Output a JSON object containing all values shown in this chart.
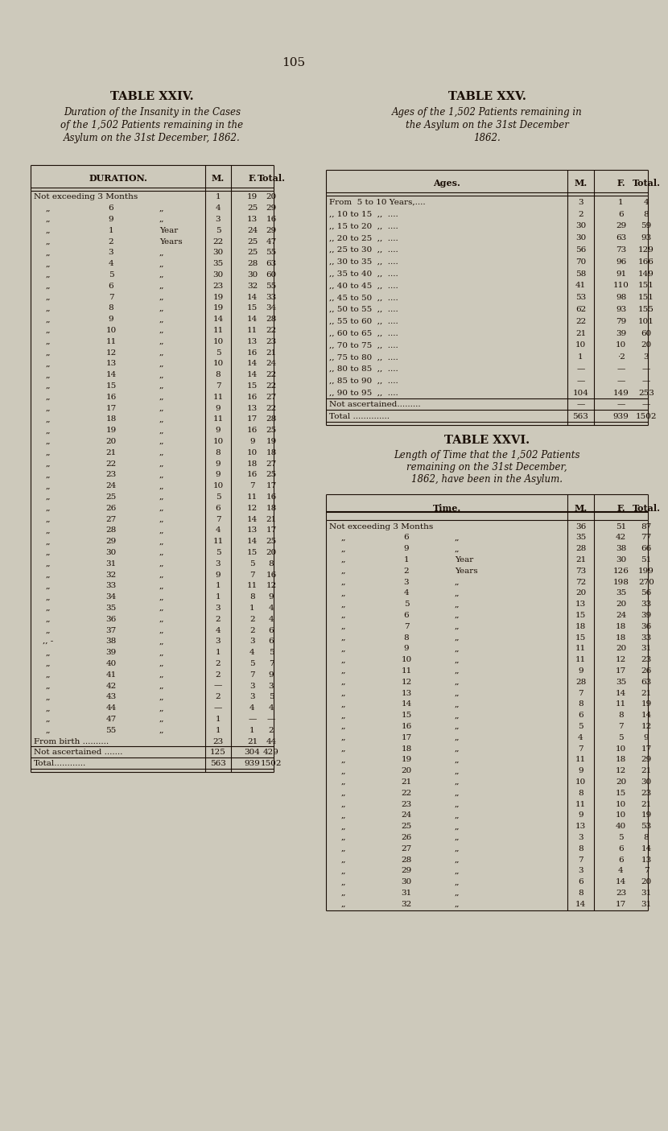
{
  "page_number": "105",
  "bg_color": "#cdc9bb",
  "text_color": "#1a0e05",
  "table24": {
    "title": "TABLE XXIV.",
    "subtitle": [
      "Duration of the Insanity in the Cases",
      "of the 1,502 Patients remaining in the",
      "Asylum on the 31st December, 1862."
    ],
    "rows": [
      [
        "Not exceeding 3 Months",
        "",
        "",
        "1",
        "19",
        "20"
      ],
      [
        ",,",
        "6",
        ",,",
        "4",
        "25",
        "29"
      ],
      [
        ",,",
        "9",
        ",,",
        "3",
        "13",
        "16"
      ],
      [
        ",,",
        "1",
        "Year",
        "5",
        "24",
        "29"
      ],
      [
        ",,",
        "2",
        "Years",
        "22",
        "25",
        "47"
      ],
      [
        ",,",
        "3",
        ",,",
        "30",
        "25",
        "55"
      ],
      [
        ",,",
        "4",
        ",,",
        "35",
        "28",
        "63"
      ],
      [
        ",,",
        "5",
        ",,",
        "30",
        "30",
        "60"
      ],
      [
        ",,",
        "6",
        ",,",
        "23",
        "32",
        "55"
      ],
      [
        ",,",
        "7",
        ",,",
        "19",
        "14",
        "33"
      ],
      [
        ",,",
        "8",
        ",,",
        "19",
        "15",
        "34"
      ],
      [
        ",,",
        "9",
        ",,",
        "14",
        "14",
        "28"
      ],
      [
        ",,",
        "10",
        ",,",
        "11",
        "11",
        "22"
      ],
      [
        ",,",
        "11",
        ",,",
        "10",
        "13",
        "23"
      ],
      [
        ",,",
        "12",
        ",,",
        "5",
        "16",
        "21"
      ],
      [
        ",,",
        "13",
        ",,",
        "10",
        "14",
        "24"
      ],
      [
        ",,",
        "14",
        ",,",
        "8",
        "14",
        "22"
      ],
      [
        ",,",
        "15",
        ",,",
        "7",
        "15",
        "22"
      ],
      [
        ",,",
        "16",
        ",,",
        "11",
        "16",
        "27"
      ],
      [
        ",,",
        "17",
        ",,",
        "9",
        "13",
        "22"
      ],
      [
        ",,",
        "18",
        ",,",
        "11",
        "17",
        "28"
      ],
      [
        ",,",
        "19",
        ",,",
        "9",
        "16",
        "25"
      ],
      [
        ",,",
        "20",
        ",,",
        "10",
        "9",
        "19"
      ],
      [
        ",,",
        "21",
        ",,",
        "8",
        "10",
        "18"
      ],
      [
        ",,",
        "22",
        ",,",
        "9",
        "18",
        "27"
      ],
      [
        ",,",
        "23",
        ",,",
        "9",
        "16",
        "25"
      ],
      [
        ",,",
        "24",
        ",,",
        "10",
        "7",
        "17"
      ],
      [
        ",,",
        "25",
        ",,",
        "5",
        "11",
        "16"
      ],
      [
        ",,",
        "26",
        ",,",
        "6",
        "12",
        "18"
      ],
      [
        ",,",
        "27",
        ",,",
        "7",
        "14",
        "21"
      ],
      [
        ",,",
        "28",
        ",,",
        "4",
        "13",
        "17"
      ],
      [
        ",,",
        "29",
        ",,",
        "11",
        "14",
        "25"
      ],
      [
        ",,",
        "30",
        ",,",
        "5",
        "15",
        "20"
      ],
      [
        ",,",
        "31",
        ",,",
        "3",
        "5",
        "8"
      ],
      [
        ",,",
        "32",
        ",,",
        "9",
        "7",
        "16"
      ],
      [
        ",,",
        "33",
        ",,",
        "1",
        "11",
        "12"
      ],
      [
        ",,",
        "34",
        ",,",
        "1",
        "8",
        "9"
      ],
      [
        ",,",
        "35",
        ",,",
        "3",
        "1",
        "4"
      ],
      [
        ",,",
        "36",
        ",,",
        "2",
        "2",
        "4"
      ],
      [
        ",,",
        "37",
        ",,",
        "4",
        "2",
        "6"
      ],
      [
        ",, -",
        "38",
        ",,",
        "3",
        "3",
        "6"
      ],
      [
        ",,",
        "39",
        ",,",
        "1",
        "4",
        "5"
      ],
      [
        ",,",
        "40",
        ",,",
        "2",
        "5",
        "7"
      ],
      [
        ",,",
        "41",
        ",,",
        "2",
        "7",
        "9"
      ],
      [
        ",,",
        "42",
        ",,",
        "—",
        "3",
        "3"
      ],
      [
        ",,",
        "43",
        ",,",
        "2",
        "3",
        "5"
      ],
      [
        ",,",
        "44",
        ",,",
        "—",
        "4",
        "4"
      ],
      [
        ",,",
        "47",
        ",,",
        "1",
        "—",
        "—"
      ],
      [
        ",,",
        "55",
        ",,",
        "1",
        "1",
        "2"
      ],
      [
        "From birth ..........",
        "",
        "",
        "23",
        "21",
        "44"
      ],
      [
        "Not ascertained .......",
        "",
        "",
        "125",
        "304",
        "429"
      ],
      [
        "Total............",
        "",
        "",
        "563",
        "939",
        "1502"
      ]
    ]
  },
  "table25": {
    "title": "TABLE XXV.",
    "subtitle": [
      "Ages of the 1,502 Patients remaining in",
      "the Asylum on the 31st December",
      "1862."
    ],
    "rows": [
      [
        "From  5 to 10 Years,....",
        "3",
        "1",
        "4"
      ],
      [
        ",, 10 to 15  ,,  ....",
        "2",
        "6",
        "8"
      ],
      [
        ",, 15 to 20  ,,  ....",
        "30",
        "29",
        "59"
      ],
      [
        ",, 20 to 25  ,,  ....",
        "30",
        "63",
        "93"
      ],
      [
        ",, 25 to 30  ,,  ....",
        "56",
        "73",
        "129"
      ],
      [
        ",, 30 to 35  ,,  ....",
        "70",
        "96",
        "166"
      ],
      [
        ",, 35 to 40  ,,  ....",
        "58",
        "91",
        "149"
      ],
      [
        ",, 40 to 45  ,,  ....",
        "41",
        "110",
        "151"
      ],
      [
        ",, 45 to 50  ,,  ....",
        "53",
        "98",
        "151"
      ],
      [
        ",, 50 to 55  ,,  ....",
        "62",
        "93",
        "155"
      ],
      [
        ",, 55 to 60  ,,  ....",
        "22",
        "79",
        "101"
      ],
      [
        ",, 60 to 65  ,,  ....",
        "21",
        "39",
        "60"
      ],
      [
        ",, 70 to 75  ,,  ....",
        "10",
        "10",
        "20"
      ],
      [
        ",, 75 to 80  ,,  ....",
        "1",
        "·2",
        "3"
      ],
      [
        ",, 80 to 85  ,,  ....",
        "—",
        "—",
        "—"
      ],
      [
        ",, 85 to 90  ,,  ....",
        "—",
        "—",
        "—"
      ],
      [
        ",, 90 to 95  ,,  ....",
        "104",
        "149",
        "253"
      ],
      [
        "Not ascertained.........",
        "—",
        "—",
        "—"
      ],
      [
        "Total ..............",
        "563",
        "939",
        "1502"
      ]
    ]
  },
  "table26": {
    "title": "TABLE XXVI.",
    "subtitle": [
      "Length of Time that the 1,502 Patients",
      "remaining on the 31st December,",
      "1862, have been in the Asylum."
    ],
    "rows": [
      [
        "Not exceeding 3 Months",
        "",
        "",
        "36",
        "51",
        "87"
      ],
      [
        ",,",
        "6",
        ",,",
        "35",
        "42",
        "77"
      ],
      [
        ",,",
        "9",
        ",,",
        "28",
        "38",
        "66"
      ],
      [
        ",,",
        "1",
        "Year",
        "21",
        "30",
        "51"
      ],
      [
        ",,",
        "2",
        "Years",
        "73",
        "126",
        "199"
      ],
      [
        ",,",
        "3",
        ",,",
        "72",
        "198",
        "270"
      ],
      [
        ",,",
        "4",
        ",,",
        "20",
        "35",
        "56"
      ],
      [
        ",,",
        "5",
        ",,",
        "13",
        "20",
        "33"
      ],
      [
        ",,",
        "6",
        ",,",
        "15",
        "24",
        "39"
      ],
      [
        ",,",
        "7",
        ",,",
        "18",
        "18",
        "36"
      ],
      [
        ",,",
        "8",
        ",,",
        "15",
        "18",
        "33"
      ],
      [
        ",,",
        "9",
        ",,",
        "11",
        "20",
        "31"
      ],
      [
        ",,",
        "10",
        ",,",
        "11",
        "12",
        "23"
      ],
      [
        ",,",
        "11",
        ",,",
        "9",
        "17",
        "26"
      ],
      [
        ",,",
        "12",
        ",,",
        "28",
        "35",
        "63"
      ],
      [
        ",,",
        "13",
        ",,",
        "7",
        "14",
        "21"
      ],
      [
        ",,",
        "14",
        ",,",
        "8",
        "11",
        "19"
      ],
      [
        ",,",
        "15",
        ",,",
        "6",
        "8",
        "14"
      ],
      [
        ",,",
        "16",
        ",,",
        "5",
        "7",
        "12"
      ],
      [
        ",,",
        "17",
        ",,",
        "4",
        "5",
        "9"
      ],
      [
        ",,",
        "18",
        ",,",
        "7",
        "10",
        "17"
      ],
      [
        ",,",
        "19",
        ",,",
        "11",
        "18",
        "29"
      ],
      [
        ",,",
        "20",
        ",,",
        "9",
        "12",
        "21"
      ],
      [
        ",,",
        "21",
        ",,",
        "10",
        "20",
        "30"
      ],
      [
        ",,",
        "22",
        ",,",
        "8",
        "15",
        "23"
      ],
      [
        ",,",
        "23",
        ",,",
        "11",
        "10",
        "21"
      ],
      [
        ",,",
        "24",
        ",,",
        "9",
        "10",
        "19"
      ],
      [
        ",,",
        "25",
        ",,",
        "13",
        "40",
        "53"
      ],
      [
        ",,",
        "26",
        ",,",
        "3",
        "5",
        "8"
      ],
      [
        ",,",
        "27",
        ",,",
        "8",
        "6",
        "14"
      ],
      [
        ",,",
        "28",
        ",,",
        "7",
        "6",
        "13"
      ],
      [
        ",,",
        "29",
        ",,",
        "3",
        "4",
        "7"
      ],
      [
        ",,",
        "30",
        ",,",
        "6",
        "14",
        "20"
      ],
      [
        ",,",
        "31",
        ",,",
        "8",
        "23",
        "31"
      ],
      [
        ",,",
        "32",
        ",,",
        "14",
        "17",
        "31"
      ]
    ]
  }
}
